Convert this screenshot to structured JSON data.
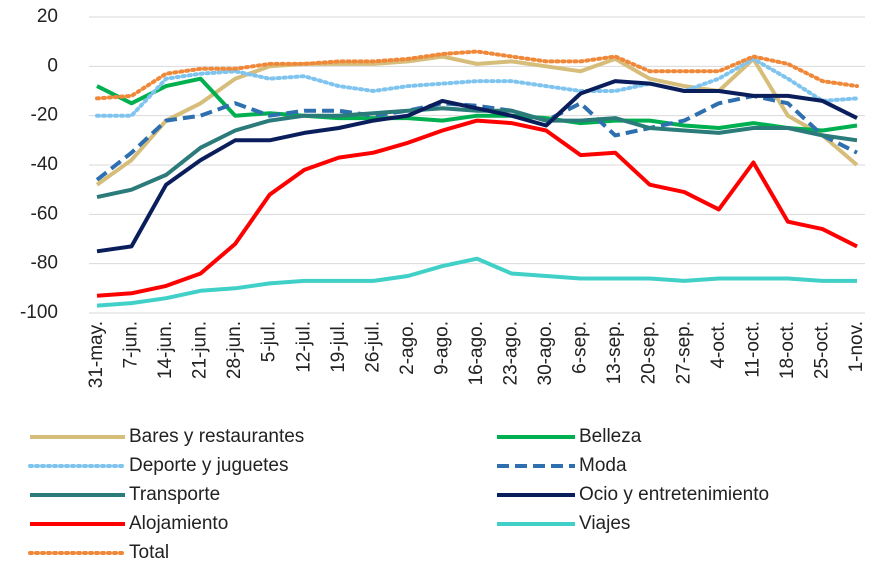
{
  "chart_data": {
    "type": "line",
    "categories": [
      "31-may.",
      "7-jun.",
      "14-jun.",
      "21-jun.",
      "28-jun.",
      "5-jul.",
      "12-jul.",
      "19-jul.",
      "26-jul.",
      "2-ago.",
      "9-ago.",
      "16-ago.",
      "23-ago.",
      "30-ago.",
      "6-sep.",
      "13-sep.",
      "20-sep.",
      "27-sep.",
      "4-oct.",
      "11-oct.",
      "18-oct.",
      "25-oct.",
      "1-nov."
    ],
    "ylim": [
      -100,
      20
    ],
    "yticks": [
      -100,
      -80,
      -60,
      -40,
      -20,
      0,
      20
    ],
    "grid": true,
    "series": [
      {
        "name": "Bares y restaurantes",
        "color": "#d6bd7a",
        "dash": "solid",
        "values": [
          -48,
          -38,
          -22,
          -15,
          -5,
          0,
          1,
          1,
          1,
          2,
          4,
          1,
          2,
          0,
          -2,
          3,
          -5,
          -8,
          -10,
          3,
          -20,
          -28,
          -40
        ]
      },
      {
        "name": "Belleza",
        "color": "#00b050",
        "dash": "solid",
        "values": [
          -8,
          -15,
          -8,
          -5,
          -20,
          -19,
          -20,
          -21,
          -21,
          -21,
          -22,
          -20,
          -20,
          -21,
          -23,
          -22,
          -22,
          -24,
          -25,
          -23,
          -25,
          -26,
          -24
        ]
      },
      {
        "name": "Deporte y juguetes",
        "color": "#7fc4ef",
        "dash": "dotted",
        "values": [
          -20,
          -20,
          -5,
          -3,
          -2,
          -5,
          -4,
          -8,
          -10,
          -8,
          -7,
          -6,
          -6,
          -8,
          -10,
          -10,
          -7,
          -10,
          -5,
          3,
          -5,
          -14,
          -13
        ]
      },
      {
        "name": "Moda",
        "color": "#2e6fb0",
        "dash": "dashed",
        "values": [
          -46,
          -35,
          -22,
          -20,
          -15,
          -20,
          -18,
          -18,
          -20,
          -18,
          -15,
          -16,
          -18,
          -22,
          -15,
          -28,
          -25,
          -22,
          -15,
          -12,
          -15,
          -28,
          -35
        ]
      },
      {
        "name": "Transporte",
        "color": "#2a7b7a",
        "dash": "solid",
        "values": [
          -53,
          -50,
          -44,
          -33,
          -26,
          -22,
          -20,
          -20,
          -19,
          -18,
          -17,
          -18,
          -18,
          -22,
          -22,
          -21,
          -25,
          -26,
          -27,
          -25,
          -25,
          -28,
          -30
        ]
      },
      {
        "name": "Ocio y entretenimiento",
        "color": "#0a1e5c",
        "dash": "solid",
        "values": [
          -75,
          -73,
          -48,
          -38,
          -30,
          -30,
          -27,
          -25,
          -22,
          -20,
          -14,
          -17,
          -20,
          -24,
          -11,
          -6,
          -7,
          -10,
          -10,
          -12,
          -12,
          -14,
          -21
        ]
      },
      {
        "name": "Alojamiento",
        "color": "#ff0000",
        "dash": "solid",
        "values": [
          -93,
          -92,
          -89,
          -84,
          -72,
          -52,
          -42,
          -37,
          -35,
          -31,
          -26,
          -22,
          -23,
          -26,
          -36,
          -35,
          -48,
          -51,
          -58,
          -39,
          -63,
          -66,
          -73
        ]
      },
      {
        "name": "Viajes",
        "color": "#40d0c8",
        "dash": "solid",
        "values": [
          -97,
          -96,
          -94,
          -91,
          -90,
          -88,
          -87,
          -87,
          -87,
          -85,
          -81,
          -78,
          -84,
          -85,
          -86,
          -86,
          -86,
          -87,
          -86,
          -86,
          -86,
          -87,
          -87
        ]
      },
      {
        "name": "Total",
        "color": "#f0883a",
        "dash": "dotted",
        "values": [
          -13,
          -12,
          -3,
          -1,
          -1,
          1,
          1,
          2,
          2,
          3,
          5,
          6,
          4,
          2,
          2,
          4,
          -2,
          -2,
          -2,
          4,
          1,
          -6,
          -8
        ]
      }
    ]
  }
}
